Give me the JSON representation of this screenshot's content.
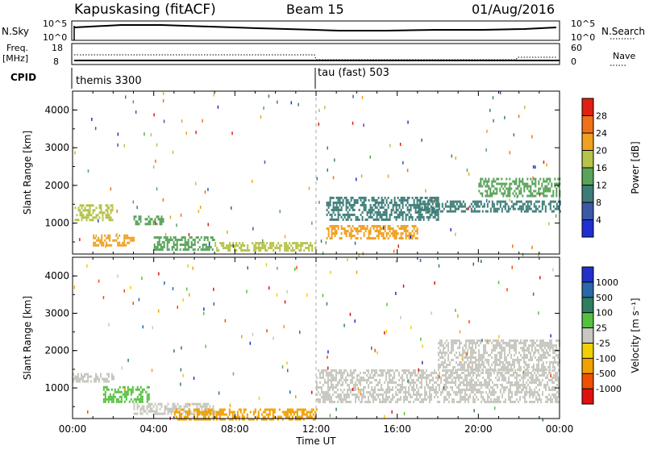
{
  "header": {
    "station": "Kapuskasing (fitACF)",
    "beam": "Beam 15",
    "date": "01/Aug/2016"
  },
  "strip_panels": {
    "nsky": {
      "label": "N.Sky",
      "ticks": [
        "10^5",
        "10^0"
      ],
      "right_label": "N.Search",
      "right_ticks": [
        "10^5",
        "10^0"
      ]
    },
    "freq": {
      "label_line1": "Freq.",
      "label_line2": "[MHz]",
      "ticks": [
        "18",
        "8"
      ],
      "right_label": "Nave",
      "right_ticks": [
        "60",
        "0"
      ]
    },
    "cpid": {
      "label": "CPID",
      "modes": [
        {
          "name": "themis 3300",
          "start_hour": 0
        },
        {
          "name": "tau (fast) 503",
          "start_hour": 12
        }
      ]
    }
  },
  "chart_data": [
    {
      "type": "heatmap",
      "title": "",
      "ylabel": "Slant Range [km]",
      "xlabel": "",
      "ylim": [
        180,
        4500
      ],
      "yticks": [
        "1000",
        "2000",
        "3000",
        "4000"
      ],
      "colorbar": {
        "label": "Power [dB]",
        "ticks": [
          "4",
          "8",
          "12",
          "16",
          "20",
          "24",
          "28"
        ],
        "colors": [
          "#1f2fd2",
          "#3a5aa8",
          "#3d7d78",
          "#59a35a",
          "#b6c34a",
          "#f0a020",
          "#f07018",
          "#e02010"
        ]
      },
      "bands": [
        {
          "x": [
            0.1,
            2.0
          ],
          "range": [
            1100,
            1500
          ],
          "level": 16
        },
        {
          "x": [
            1.0,
            3.0
          ],
          "range": [
            400,
            700
          ],
          "level": 20
        },
        {
          "x": [
            3.0,
            4.5
          ],
          "range": [
            950,
            1200
          ],
          "level": 12
        },
        {
          "x": [
            4.0,
            7.0
          ],
          "range": [
            300,
            650
          ],
          "level": 12
        },
        {
          "x": [
            7.0,
            12.0
          ],
          "range": [
            250,
            500
          ],
          "level": 16
        },
        {
          "x": [
            12.5,
            17.0
          ],
          "range": [
            600,
            950
          ],
          "level": 20
        },
        {
          "x": [
            12.5,
            18.0
          ],
          "range": [
            1100,
            1700
          ],
          "level": 8
        },
        {
          "x": [
            17.0,
            24.0
          ],
          "range": [
            1300,
            1600
          ],
          "level": 8
        },
        {
          "x": [
            20.0,
            24.0
          ],
          "range": [
            1700,
            2200
          ],
          "level": 12
        }
      ]
    },
    {
      "type": "heatmap",
      "title": "",
      "ylabel": "Slant Range [km]",
      "xlabel": "Time UT",
      "xticks": [
        "00:00",
        "04:00",
        "08:00",
        "12:00",
        "16:00",
        "20:00",
        "00:00"
      ],
      "ylim": [
        180,
        4500
      ],
      "yticks": [
        "1000",
        "2000",
        "3000",
        "4000"
      ],
      "colorbar": {
        "label": "Velocity [m s⁻¹]",
        "ticks": [
          "1000",
          "500",
          "100",
          "25",
          "-25",
          "-100",
          "-500",
          "-1000"
        ],
        "colors": [
          "#2030c8",
          "#2a68a8",
          "#2d7f5f",
          "#55c040",
          "#c8c8c0",
          "#f0d000",
          "#f0a000",
          "#f05000",
          "#e01010"
        ]
      },
      "bands": [
        {
          "x": [
            0.0,
            2.0
          ],
          "range": [
            1150,
            1400
          ],
          "level": 0
        },
        {
          "x": [
            1.5,
            3.8
          ],
          "range": [
            650,
            1050
          ],
          "level": 100
        },
        {
          "x": [
            3.0,
            7.0
          ],
          "range": [
            300,
            600
          ],
          "level": 0
        },
        {
          "x": [
            5.0,
            12.0
          ],
          "range": [
            180,
            450
          ],
          "level": -100
        },
        {
          "x": [
            12.0,
            24.0
          ],
          "range": [
            600,
            1500
          ],
          "level": 0
        },
        {
          "x": [
            18.0,
            24.0
          ],
          "range": [
            1500,
            2300
          ],
          "level": 0
        }
      ]
    }
  ]
}
